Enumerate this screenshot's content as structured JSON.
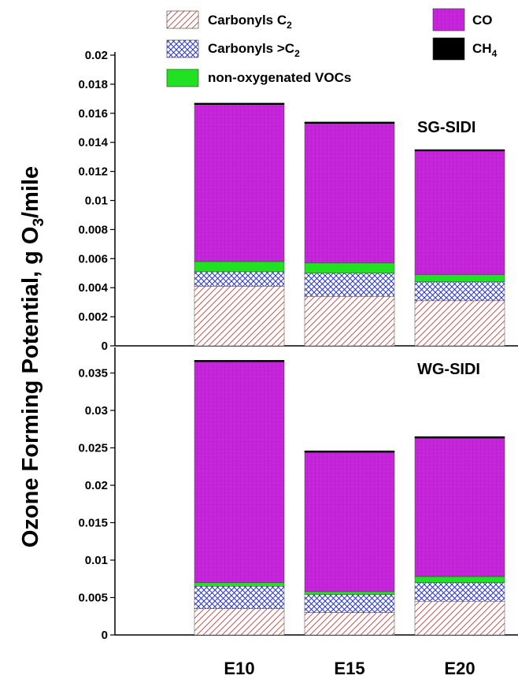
{
  "chart_data": {
    "type": "bar",
    "stacked": true,
    "ylabel": {
      "text": "Ozone Forming Potential, g O",
      "sub": "3",
      "suffix": "/mile"
    },
    "categories": [
      "E10",
      "E15",
      "E20"
    ],
    "legend": [
      {
        "key": "c2",
        "text": "Carbonyls C",
        "sub": "2",
        "color": "#e53935",
        "pattern": "diagonal-hatch"
      },
      {
        "key": "gtc2",
        "text": "Carbonyls >C",
        "sub": "2",
        "color": "#2a34c9",
        "pattern": "cross-hatch"
      },
      {
        "key": "nonox",
        "text": "non-oxygenated VOCs",
        "sub": "",
        "color": "#22e022",
        "pattern": "solid"
      },
      {
        "key": "co",
        "text": "CO",
        "sub": "",
        "color": "#c826dc",
        "pattern": "grid"
      },
      {
        "key": "ch4",
        "text": "CH",
        "sub": "4",
        "color": "#000000",
        "pattern": "solid"
      }
    ],
    "panels": [
      {
        "label": "SG-SIDI",
        "ylim": [
          0,
          0.02
        ],
        "ticks": [
          "0",
          "0.002",
          "0.004",
          "0.006",
          "0.008",
          "0.01",
          "0.012",
          "0.014",
          "0.016",
          "0.018",
          "0.02"
        ],
        "series": [
          {
            "key": "c2",
            "values": [
              0.0041,
              0.0034,
              0.0031
            ]
          },
          {
            "key": "gtc2",
            "values": [
              0.001,
              0.0016,
              0.0013
            ]
          },
          {
            "key": "nonox",
            "values": [
              0.0007,
              0.0007,
              0.0005
            ]
          },
          {
            "key": "co",
            "values": [
              0.0108,
              0.0096,
              0.0085
            ]
          },
          {
            "key": "ch4",
            "values": [
              0.0001,
              0.0001,
              0.0001
            ]
          }
        ]
      },
      {
        "label": "WG-SIDI",
        "ylim": [
          0,
          0.038
        ],
        "ticks": [
          "0",
          "0.005",
          "0.01",
          "0.015",
          "0.02",
          "0.025",
          "0.03",
          "0.035"
        ],
        "series": [
          {
            "key": "c2",
            "values": [
              0.0035,
              0.003,
              0.0045
            ]
          },
          {
            "key": "gtc2",
            "values": [
              0.003,
              0.0024,
              0.0025
            ]
          },
          {
            "key": "nonox",
            "values": [
              0.0005,
              0.0004,
              0.0008
            ]
          },
          {
            "key": "co",
            "values": [
              0.0295,
              0.0186,
              0.0185
            ]
          },
          {
            "key": "ch4",
            "values": [
              0.0002,
              0.0002,
              0.0002
            ]
          }
        ]
      }
    ]
  }
}
